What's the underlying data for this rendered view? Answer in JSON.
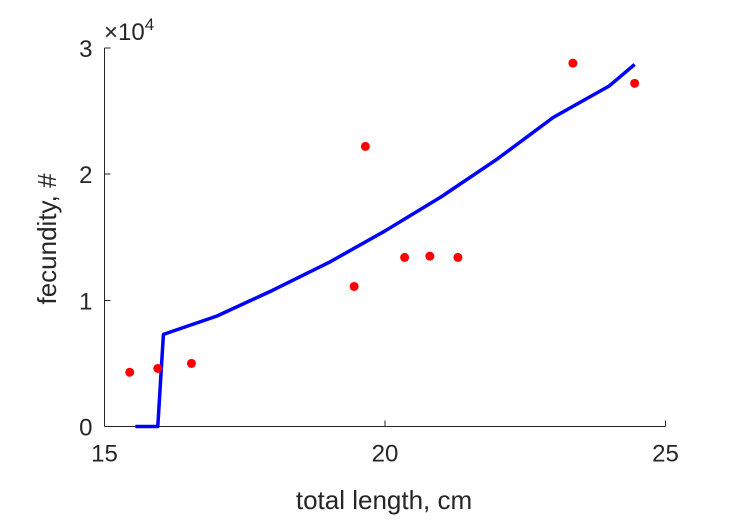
{
  "chart_data": {
    "type": "scatter",
    "title": "",
    "xlabel": "total length, cm",
    "ylabel": "fecundity, #",
    "xlim": [
      15,
      25
    ],
    "ylim": [
      0,
      30000
    ],
    "x_ticks": [
      15,
      20,
      25
    ],
    "x_tick_labels": [
      "15",
      "20",
      "25"
    ],
    "y_ticks": [
      0,
      10000,
      20000,
      30000
    ],
    "y_tick_labels": [
      "0",
      "1",
      "2",
      "3"
    ],
    "y_exponent_prefix": "×10",
    "y_exponent_power": "4",
    "grid": false,
    "legend": "none",
    "series": [
      {
        "kind": "scatter",
        "color": "#ff0000",
        "points": [
          {
            "x": 15.45,
            "y": 4300
          },
          {
            "x": 15.95,
            "y": 4600
          },
          {
            "x": 16.55,
            "y": 5000
          },
          {
            "x": 19.45,
            "y": 11100
          },
          {
            "x": 19.65,
            "y": 22200
          },
          {
            "x": 20.35,
            "y": 13400
          },
          {
            "x": 20.8,
            "y": 13500
          },
          {
            "x": 21.3,
            "y": 13400
          },
          {
            "x": 23.35,
            "y": 28800
          },
          {
            "x": 24.45,
            "y": 27200
          }
        ]
      },
      {
        "kind": "line",
        "color": "#0000ff",
        "points": [
          {
            "x": 15.55,
            "y": 0
          },
          {
            "x": 15.95,
            "y": 0
          },
          {
            "x": 16.05,
            "y": 7300
          },
          {
            "x": 17,
            "y": 8750
          },
          {
            "x": 18,
            "y": 10800
          },
          {
            "x": 19,
            "y": 13000
          },
          {
            "x": 20,
            "y": 15500
          },
          {
            "x": 21,
            "y": 18200
          },
          {
            "x": 22,
            "y": 21200
          },
          {
            "x": 23,
            "y": 24500
          },
          {
            "x": 24,
            "y": 27000
          },
          {
            "x": 24.45,
            "y": 28700
          }
        ]
      }
    ]
  }
}
